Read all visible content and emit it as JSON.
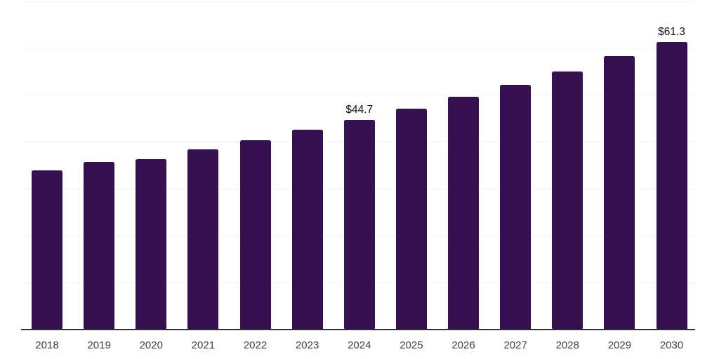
{
  "page": {
    "background": "#ffffff"
  },
  "chart_data": {
    "type": "bar",
    "title": "",
    "xlabel": "",
    "ylabel": "",
    "categories": [
      "2018",
      "2019",
      "2020",
      "2021",
      "2022",
      "2023",
      "2024",
      "2025",
      "2026",
      "2027",
      "2028",
      "2029",
      "2030"
    ],
    "values": [
      34.0,
      35.8,
      36.4,
      38.4,
      40.4,
      42.6,
      44.7,
      47.1,
      49.6,
      52.2,
      55.1,
      58.3,
      61.3
    ],
    "data_labels": [
      "",
      "",
      "",
      "",
      "",
      "",
      "$44.7",
      "",
      "",
      "",
      "",
      "",
      "$61.3"
    ],
    "ylim": [
      0,
      70
    ],
    "gridline_step": 10,
    "grid": "horizontal",
    "y_axis_labels_visible": false,
    "legend": "none",
    "colors": {
      "bar": "#351152",
      "gridline": "#f2f2f2",
      "axis_line": "#303030",
      "tick_label": "#404040",
      "data_label": "#111111"
    }
  }
}
